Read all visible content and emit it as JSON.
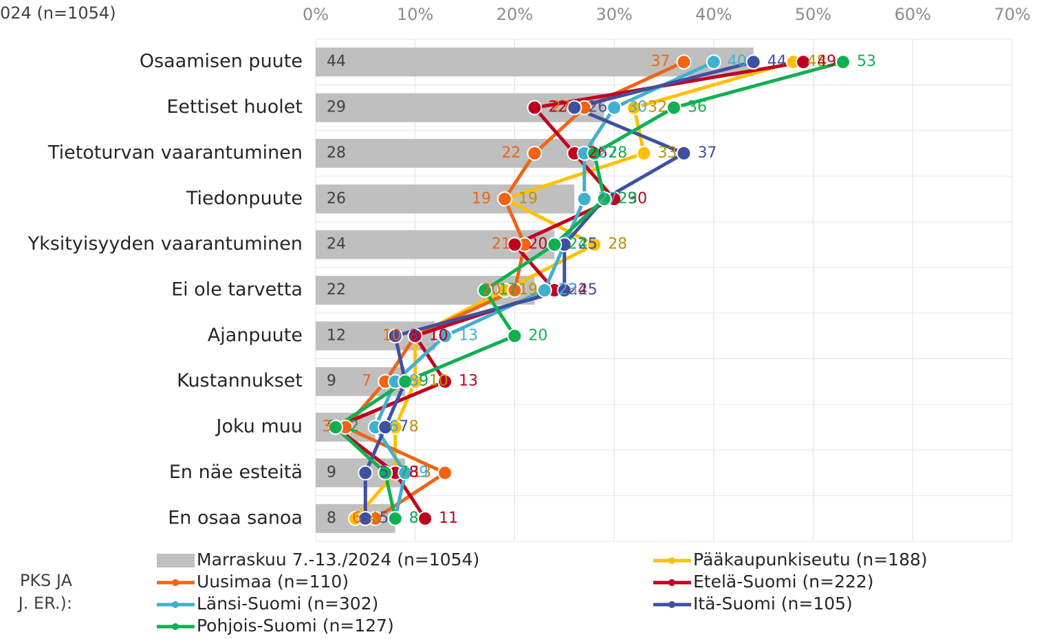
{
  "chart_data": {
    "type": "bar-line",
    "title": "024 (n=1054)",
    "side_note": [
      "PKS JA",
      "J. ER.):"
    ],
    "categories": [
      "Osaamisen puute",
      "Eettiset huolet",
      "Tietoturvan vaarantuminen",
      "Tiedonpuute",
      "Yksityisyyden vaarantuminen",
      "Ei ole tarvetta",
      "Ajanpuute",
      "Kustannukset",
      "Joku muu",
      "En näe esteitä",
      "En osaa sanoa"
    ],
    "xlim": [
      0,
      70
    ],
    "xticks": [
      {
        "value": 0,
        "label": "0%"
      },
      {
        "value": 10,
        "label": "10%"
      },
      {
        "value": 20,
        "label": "20%"
      },
      {
        "value": 30,
        "label": "30%"
      },
      {
        "value": 40,
        "label": "40%"
      },
      {
        "value": 50,
        "label": "50%"
      },
      {
        "value": 60,
        "label": "60%"
      },
      {
        "value": 70,
        "label": "70%"
      }
    ],
    "grid": true,
    "bar_series": {
      "name": "Marraskuu 7.-13./2024 (n=1054)",
      "color": "#bfbfbf",
      "label_color": "#404040",
      "values": [
        44,
        29,
        28,
        26,
        24,
        22,
        12,
        9,
        6,
        9,
        8
      ]
    },
    "series": [
      {
        "name": "Pääkaupunkiseutu (n=188)",
        "color": "#ffc000",
        "label_color": "#bf9000",
        "values": [
          48,
          32,
          33,
          19,
          28,
          19,
          10,
          10,
          8,
          8,
          4
        ]
      },
      {
        "name": "Uusimaa (n=110)",
        "color": "#f06414",
        "label_color": "#f06414",
        "label_side": "left",
        "values": [
          37,
          27,
          22,
          19,
          21,
          20,
          10,
          7,
          3,
          13,
          6
        ]
      },
      {
        "name": "Etelä-Suomi (n=222)",
        "color": "#c00020",
        "label_color": "#c00020",
        "values": [
          49,
          22,
          26,
          30,
          20,
          24,
          10,
          13,
          2,
          8,
          11
        ]
      },
      {
        "name": "Länsi-Suomi (n=302)",
        "color": "#40b0d0",
        "label_color": "#40b0d0",
        "values": [
          40,
          30,
          27,
          27,
          25,
          23,
          13,
          8,
          6,
          9,
          8
        ]
      },
      {
        "name": "Itä-Suomi (n=105)",
        "color": "#4050a0",
        "label_color": "#4050a0",
        "values": [
          44,
          26,
          37,
          29,
          25,
          25,
          8,
          9,
          7,
          5,
          5
        ]
      },
      {
        "name": "Pohjois-Suomi (n=127)",
        "color": "#10b050",
        "label_color": "#10b050",
        "values": [
          53,
          36,
          28,
          29,
          24,
          17,
          20,
          9,
          2,
          7,
          8
        ]
      }
    ]
  }
}
